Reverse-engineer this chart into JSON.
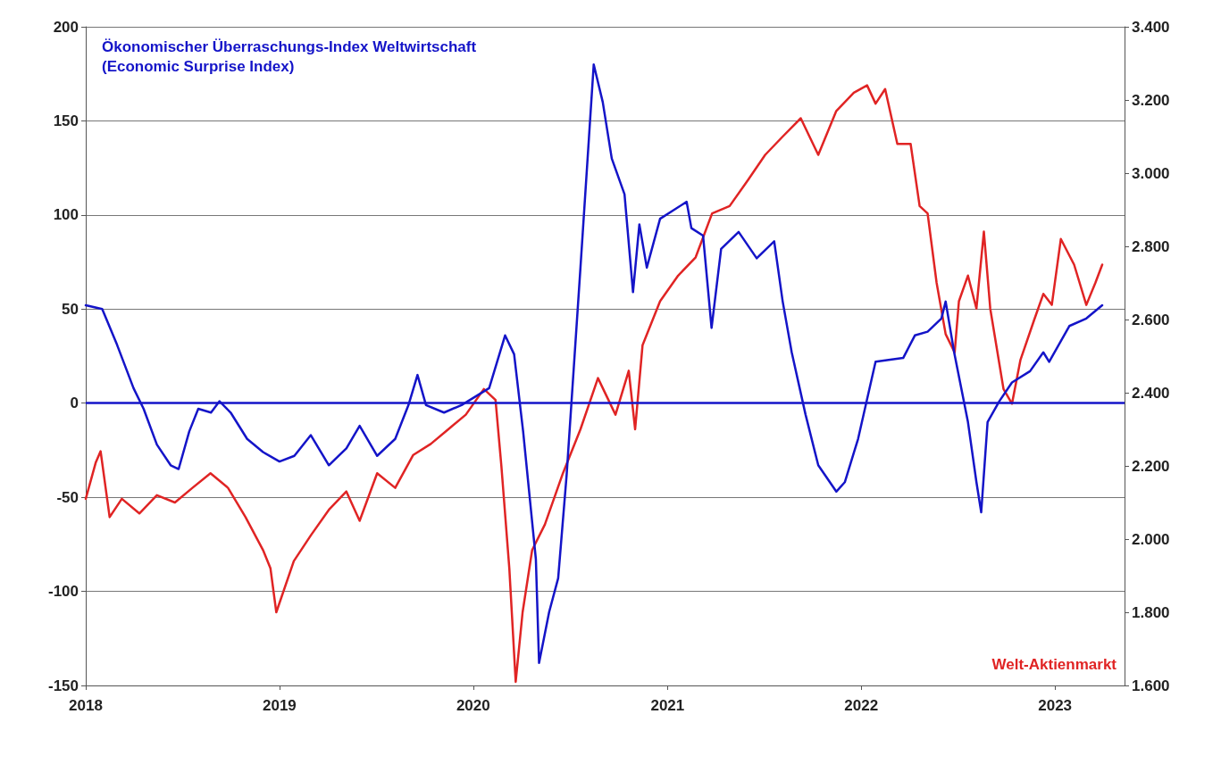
{
  "chart_data": {
    "type": "line",
    "series": [
      {
        "name": "Ökonomischer Überraschungs-Index Weltwirtschaft\n(Economic Surprise Index)",
        "color": "#1414c8",
        "x": [
          "2018-01-01",
          "2018-02-01",
          "2018-03-01",
          "2018-04-01",
          "2018-04-20",
          "2018-05-15",
          "2018-06-10",
          "2018-06-25",
          "2018-07-15",
          "2018-08-01",
          "2018-08-25",
          "2018-09-10",
          "2018-10-01",
          "2018-11-01",
          "2018-12-01",
          "2019-01-01",
          "2019-01-29",
          "2019-03-01",
          "2019-04-04",
          "2019-05-07",
          "2019-06-01",
          "2019-07-04",
          "2019-08-07",
          "2019-09-01",
          "2019-09-18",
          "2019-10-04",
          "2019-11-07",
          "2019-12-10",
          "2020-01-31",
          "2020-03-01",
          "2020-03-18",
          "2020-04-04",
          "2020-04-28",
          "2020-05-04",
          "2020-05-23",
          "2020-06-09",
          "2020-06-25",
          "2020-07-21",
          "2020-08-06",
          "2020-08-15",
          "2020-09-01",
          "2020-09-18",
          "2020-10-12",
          "2020-10-28",
          "2020-11-09",
          "2020-11-23",
          "2020-12-18",
          "2021-02-06",
          "2021-02-15",
          "2021-03-09",
          "2021-03-25",
          "2021-04-12",
          "2021-05-15",
          "2021-06-18",
          "2021-07-21",
          "2021-08-06",
          "2021-08-23",
          "2021-09-18",
          "2021-10-12",
          "2021-11-15",
          "2021-12-01",
          "2021-12-26",
          "2022-01-28",
          "2022-03-21",
          "2022-04-12",
          "2022-05-06",
          "2022-06-01",
          "2022-06-09",
          "2022-06-25",
          "2022-07-21",
          "2022-08-06",
          "2022-08-15",
          "2022-08-27",
          "2022-09-18",
          "2022-10-12",
          "2022-11-15",
          "2022-12-10",
          "2022-12-21",
          "2023-01-28",
          "2023-03-01",
          "2023-03-31"
        ],
        "values": [
          52,
          50,
          31,
          8,
          -3,
          -22,
          -33,
          -35,
          -15,
          -3,
          -5,
          1,
          -5,
          -19,
          -26,
          -31,
          -28,
          -17,
          -33,
          -24,
          -12,
          -28,
          -19,
          -1,
          15,
          -1,
          -5,
          -1,
          8,
          36,
          26,
          -15,
          -83,
          -138,
          -111,
          -93,
          -38,
          72,
          141,
          180,
          160,
          130,
          111,
          59,
          95,
          72,
          98,
          107,
          93,
          89,
          40,
          82,
          91,
          77,
          86,
          54,
          27,
          -6,
          -33,
          -47,
          -42,
          -19,
          22,
          24,
          36,
          38,
          45,
          54,
          27,
          -10,
          -42,
          -58,
          -10,
          1,
          11,
          17,
          27,
          22,
          41,
          45,
          52
        ]
      },
      {
        "name": "Welt-Aktienmarkt",
        "color": "#e02424",
        "axis": "y2",
        "x": [
          "2018-01-01",
          "2018-01-20",
          "2018-01-29",
          "2018-02-15",
          "2018-03-10",
          "2018-04-12",
          "2018-05-15",
          "2018-06-18",
          "2018-07-21",
          "2018-08-24",
          "2018-09-26",
          "2018-10-29",
          "2018-12-01",
          "2018-12-15",
          "2018-12-26",
          "2019-01-28",
          "2019-03-01",
          "2019-04-04",
          "2019-05-07",
          "2019-06-01",
          "2019-07-04",
          "2019-08-07",
          "2019-09-10",
          "2019-10-13",
          "2019-11-15",
          "2019-12-18",
          "2020-01-21",
          "2020-02-12",
          "2020-02-23",
          "2020-03-09",
          "2020-03-21",
          "2020-04-03",
          "2020-04-21",
          "2020-05-15",
          "2020-06-18",
          "2020-07-21",
          "2020-08-23",
          "2020-09-25",
          "2020-10-20",
          "2020-11-01",
          "2020-11-15",
          "2020-12-18",
          "2021-01-21",
          "2021-02-23",
          "2021-03-26",
          "2021-04-28",
          "2021-06-01",
          "2021-07-04",
          "2021-08-06",
          "2021-09-09",
          "2021-10-12",
          "2021-11-15",
          "2021-12-18",
          "2022-01-12",
          "2022-01-28",
          "2022-02-15",
          "2022-03-10",
          "2022-04-04",
          "2022-04-21",
          "2022-05-06",
          "2022-05-23",
          "2022-06-09",
          "2022-06-26",
          "2022-07-04",
          "2022-07-21",
          "2022-08-06",
          "2022-08-20",
          "2022-09-01",
          "2022-09-26",
          "2022-10-12",
          "2022-10-28",
          "2022-11-23",
          "2022-12-10",
          "2022-12-26",
          "2023-01-12",
          "2023-02-06",
          "2023-03-01",
          "2023-03-18",
          "2023-03-31"
        ],
        "values": [
          2110,
          2210,
          2240,
          2060,
          2110,
          2070,
          2120,
          2100,
          2140,
          2180,
          2140,
          2060,
          1970,
          1920,
          1800,
          1940,
          2010,
          2080,
          2130,
          2050,
          2180,
          2140,
          2230,
          2260,
          2300,
          2340,
          2410,
          2380,
          2200,
          1920,
          1610,
          1800,
          1970,
          2040,
          2180,
          2300,
          2440,
          2340,
          2460,
          2300,
          2530,
          2650,
          2720,
          2770,
          2890,
          2910,
          2980,
          3050,
          3100,
          3150,
          3050,
          3170,
          3220,
          3240,
          3190,
          3230,
          3080,
          3080,
          2910,
          2890,
          2700,
          2560,
          2510,
          2650,
          2720,
          2630,
          2840,
          2630,
          2410,
          2370,
          2490,
          2600,
          2670,
          2640,
          2820,
          2750,
          2640,
          2700,
          2750
        ]
      }
    ],
    "xlim": [
      "2018-01-01",
      "2023-05-12"
    ],
    "xticks": [
      "2018",
      "2019",
      "2020",
      "2021",
      "2022",
      "2023"
    ],
    "ylim": [
      -150,
      200
    ],
    "yticks": [
      -150,
      -100,
      -50,
      0,
      50,
      100,
      150,
      200
    ],
    "y2lim": [
      1600,
      3400
    ],
    "y2ticks": [
      {
        "value": 1600,
        "label": "1.600"
      },
      {
        "value": 1800,
        "label": "1.800"
      },
      {
        "value": 2000,
        "label": "2.000"
      },
      {
        "value": 2200,
        "label": "2.200"
      },
      {
        "value": 2400,
        "label": "2.400"
      },
      {
        "value": 2600,
        "label": "2.600"
      },
      {
        "value": 2800,
        "label": "2.800"
      },
      {
        "value": 3000,
        "label": "3.000"
      },
      {
        "value": 3200,
        "label": "3.200"
      },
      {
        "value": 3400,
        "label": "3.400"
      }
    ],
    "ref_lines": [
      {
        "axis": "y",
        "value": 0,
        "label": null,
        "color": "#1414c8"
      }
    ],
    "grid": "y",
    "legend": [
      "top left",
      "bottom right"
    ],
    "marker": "none",
    "line_style": "solid"
  }
}
